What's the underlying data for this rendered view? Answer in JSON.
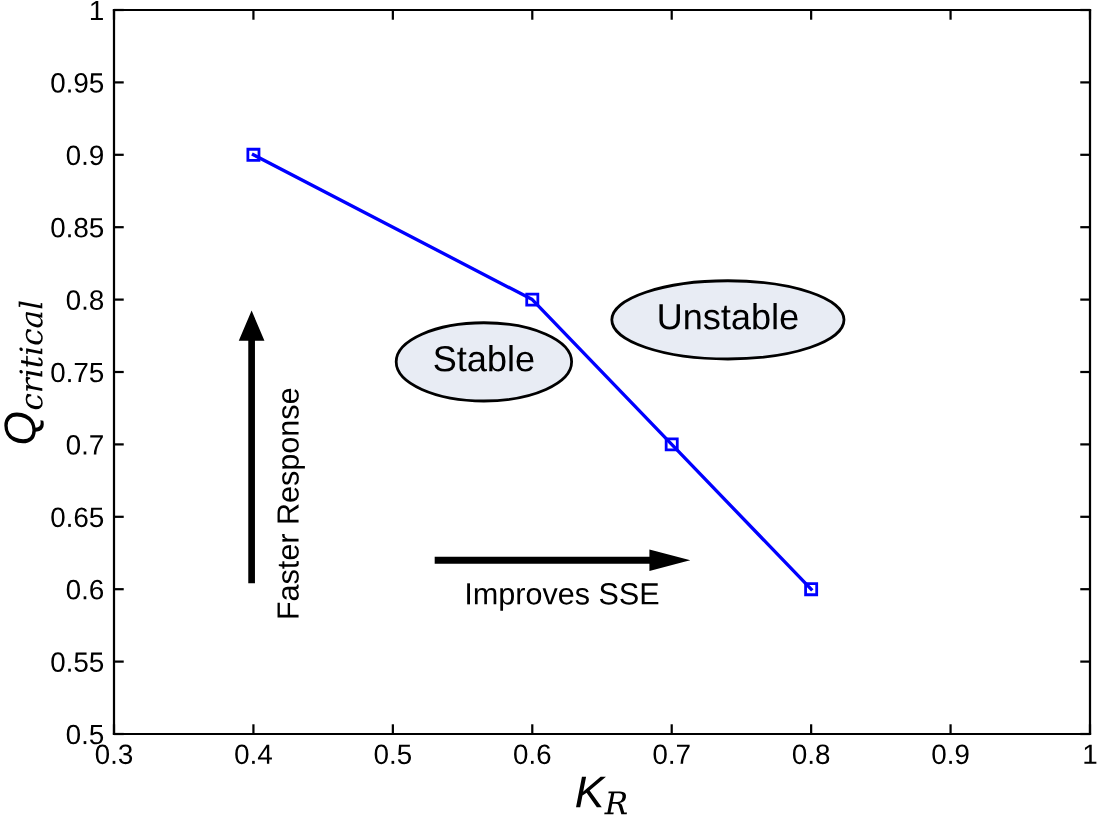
{
  "chart_data": {
    "type": "line",
    "xlabel": "K$_{R}$",
    "ylabel": "Q$_{critical}$",
    "x": [
      0.4,
      0.6,
      0.7,
      0.8
    ],
    "series": [
      {
        "color": "#0000ff",
        "values": [
          0.9,
          0.8,
          0.7,
          0.6
        ]
      }
    ],
    "marker": "square",
    "line_style": "solid",
    "grid": false,
    "legend": false,
    "xlim": [
      0.3,
      1
    ],
    "ylim": [
      0.5,
      1
    ],
    "xticks": [
      0.3,
      0.4,
      0.5,
      0.6,
      0.7,
      0.8,
      0.9,
      1
    ],
    "yticks": [
      0.5,
      0.55,
      0.6,
      0.65,
      0.7,
      0.75,
      0.8,
      0.85,
      0.9,
      0.95,
      1
    ],
    "annotations": [
      "Stable",
      "Unstable",
      "Faster Response",
      "Improves SSE"
    ]
  }
}
